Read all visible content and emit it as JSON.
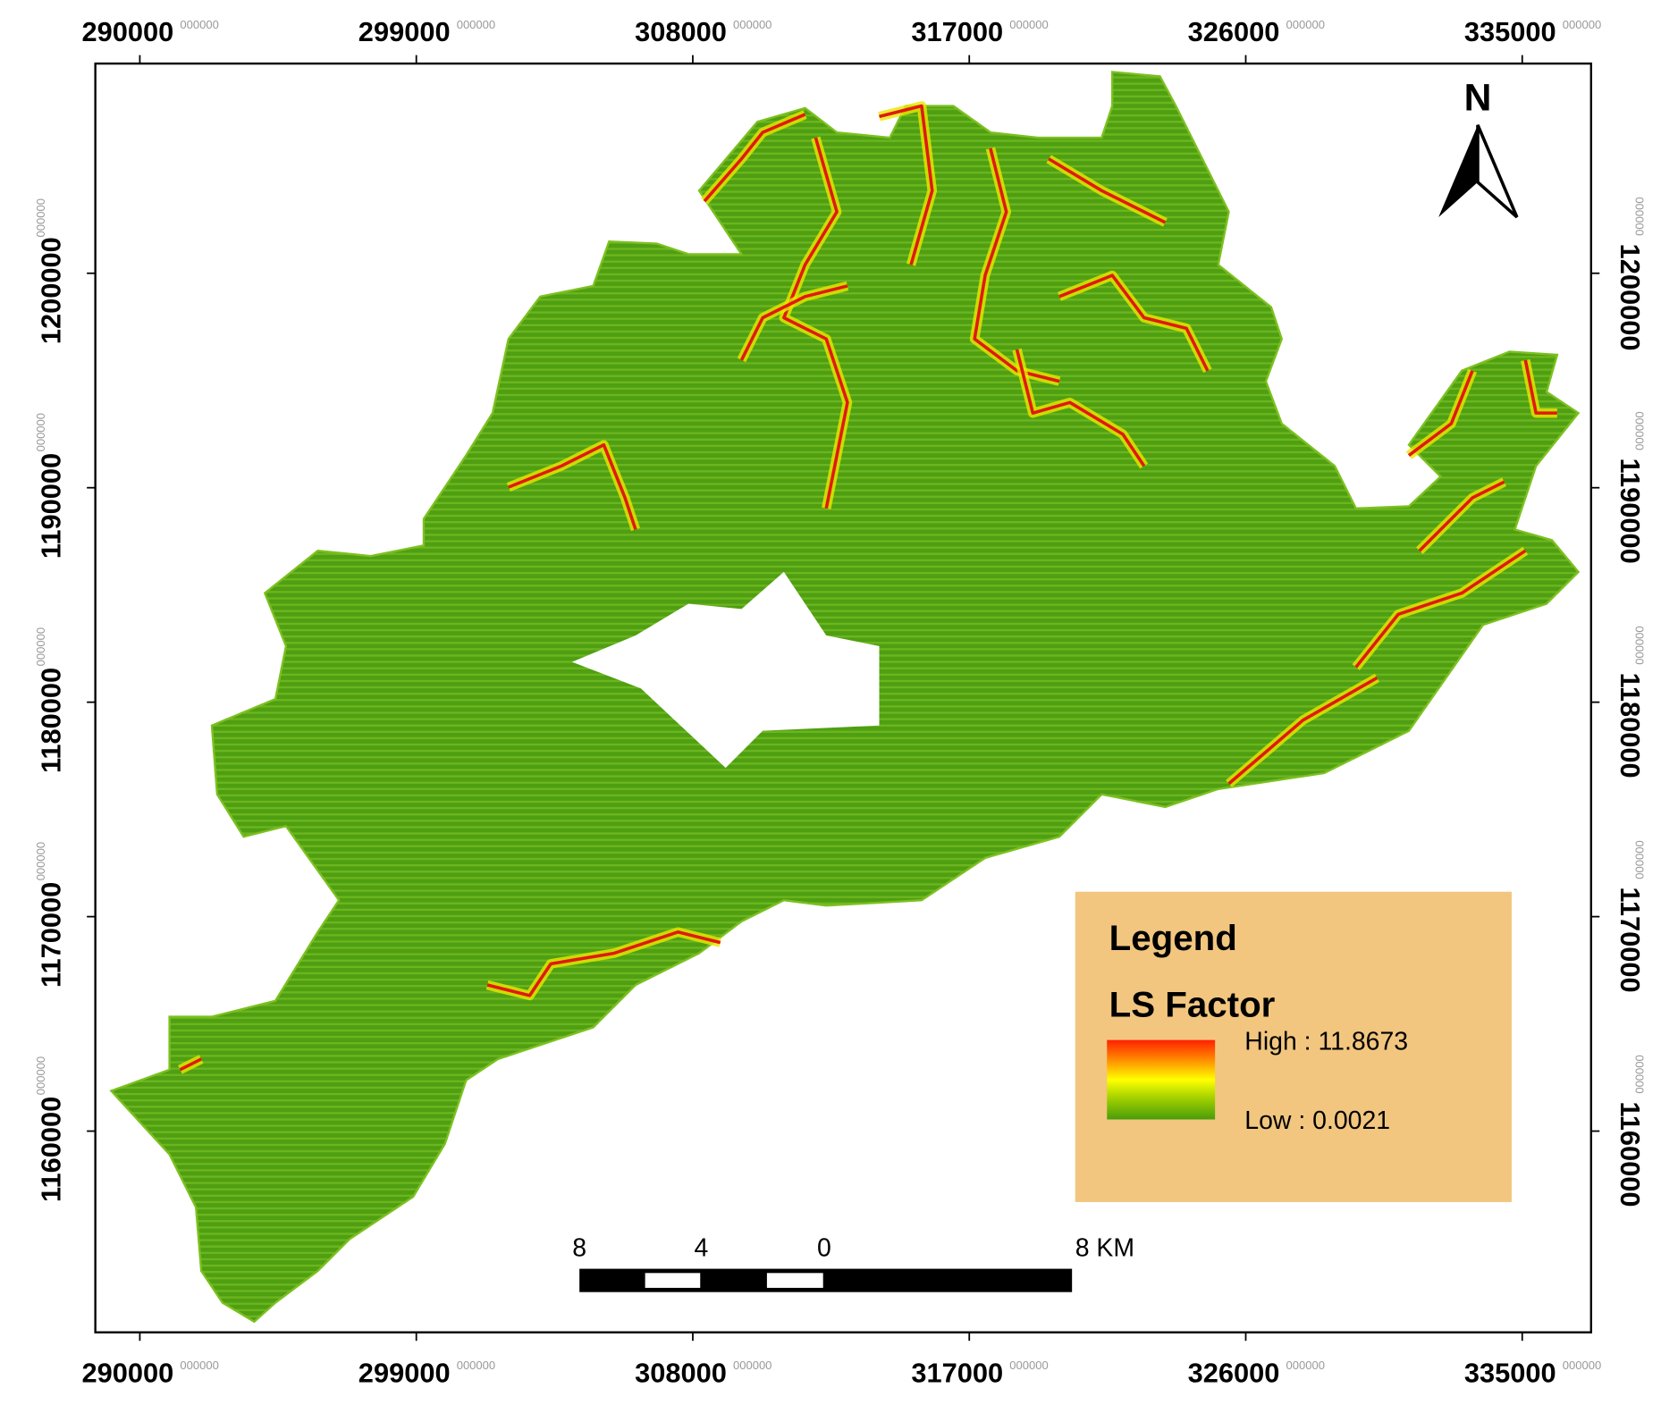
{
  "map": {
    "x_ticks": [
      "290000",
      "299000",
      "308000",
      "317000",
      "326000",
      "335000"
    ],
    "y_ticks": [
      "1200000",
      "1190000",
      "1180000",
      "1170000",
      "1160000"
    ],
    "tick_suffix": "000000",
    "north": "N",
    "legend": {
      "title": "Legend",
      "layer": "LS Factor",
      "high": "High : 11.8673",
      "low": "Low : 0.0021"
    },
    "scale_bar": [
      "8",
      "4",
      "0",
      "8 KM"
    ]
  }
}
